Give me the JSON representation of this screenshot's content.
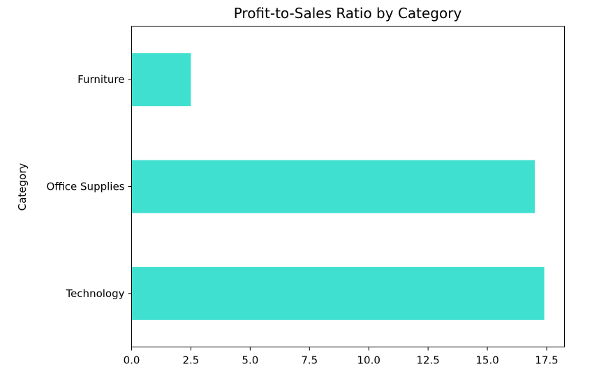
{
  "chart_data": {
    "type": "bar",
    "orientation": "horizontal",
    "title": "Profit-to-Sales Ratio by Category",
    "ylabel": "Category",
    "xlabel": "",
    "categories": [
      "Technology",
      "Office Supplies",
      "Furniture"
    ],
    "values": [
      17.4,
      17.0,
      2.5
    ],
    "xlim": [
      0,
      18.25
    ],
    "xticks": [
      "0.0",
      "2.5",
      "5.0",
      "7.5",
      "10.0",
      "12.5",
      "15.0",
      "17.5"
    ],
    "xtick_values": [
      0,
      2.5,
      5,
      7.5,
      10,
      12.5,
      15,
      17.5
    ],
    "bar_color": "#40e0d0",
    "grid": false,
    "legend": "none"
  }
}
